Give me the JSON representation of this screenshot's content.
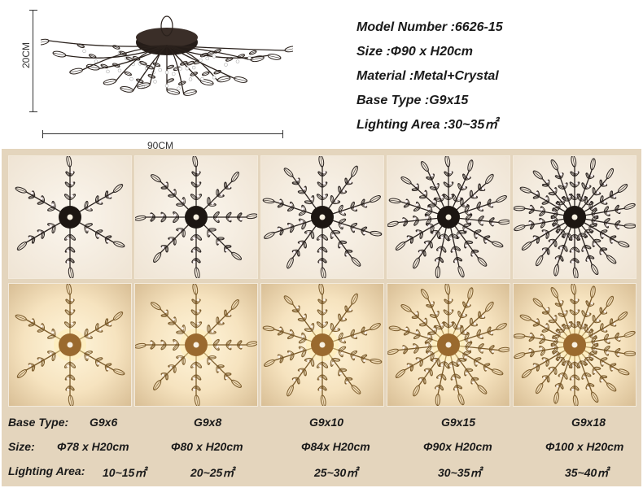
{
  "product": {
    "height_label": "20CM",
    "width_label": "90CM",
    "specs": [
      "Model Number :6626-15",
      "Size :Φ90 x H20cm",
      "Material :Metal+Crystal",
      "Base Type :G9x15",
      "Lighting Area :30~35㎡"
    ]
  },
  "table": {
    "base_type_label": "Base Type:",
    "size_label": "Size:",
    "area_label": "Lighting Area:",
    "variants": [
      {
        "base": "G9x6",
        "size": "Φ78 x H20cm",
        "area": "10~15㎡",
        "arms": 6
      },
      {
        "base": "G9x8",
        "size": "Φ80 x H20cm",
        "area": "20~25㎡",
        "arms": 8
      },
      {
        "base": "G9x10",
        "size": "Φ84x H20cm",
        "area": "25~30㎡",
        "arms": 10
      },
      {
        "base": "G9x15",
        "size": "Φ90x H20cm",
        "area": "30~35㎡",
        "arms": 15
      },
      {
        "base": "G9x18",
        "size": "Φ100 x H20cm",
        "area": "35~40㎡",
        "arms": 18
      }
    ]
  },
  "colors": {
    "panel": "#e4d5bd",
    "hub_black": "#1c1612",
    "hub_gold": "#9a6a2e",
    "branch_black": "#2a2320",
    "branch_gold": "#7a5a2a"
  }
}
